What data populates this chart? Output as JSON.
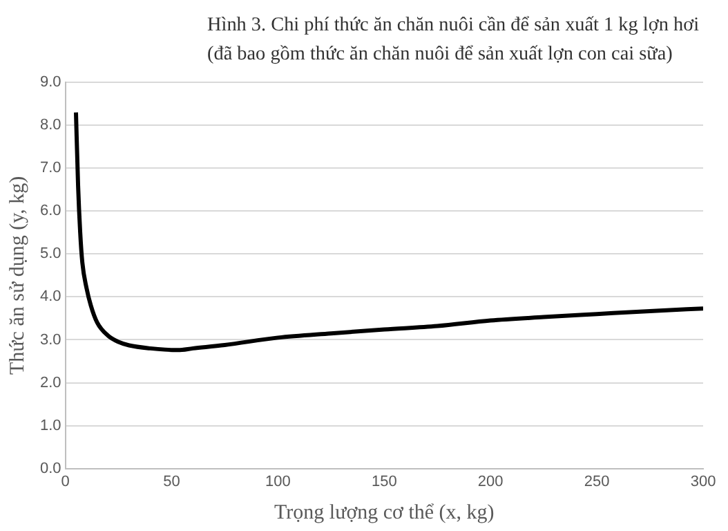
{
  "chart_data": {
    "type": "line",
    "title": "Hình 3. Chi phí thức ăn chăn nuôi cần để sản xuất 1 kg lợn hơi (đã bao gồm thức ăn chăn nuôi để sản xuất lợn con cai sữa)",
    "xlabel": "Trọng lượng cơ thể (x, kg)",
    "ylabel": "Thức ăn sử dụng (y, kg)",
    "x": [
      5,
      6,
      7,
      8,
      10,
      12,
      15,
      20,
      25,
      30,
      40,
      53,
      60,
      75,
      100,
      125,
      150,
      175,
      200,
      225,
      250,
      275,
      300
    ],
    "series": [
      {
        "color": "#000000",
        "values": [
          8.3,
          6.6,
          5.5,
          4.8,
          4.2,
          3.8,
          3.4,
          3.1,
          2.95,
          2.87,
          2.8,
          2.76,
          2.8,
          2.88,
          3.05,
          3.15,
          3.24,
          3.32,
          3.45,
          3.53,
          3.6,
          3.67,
          3.73
        ]
      }
    ],
    "xlim": [
      0,
      300
    ],
    "xticks": [
      0,
      50,
      100,
      150,
      200,
      250,
      300
    ],
    "ylim": [
      0,
      9
    ],
    "yticks": [
      {
        "value": 0,
        "label": "0.0"
      },
      {
        "value": 1,
        "label": "1.0"
      },
      {
        "value": 2,
        "label": "2.0"
      },
      {
        "value": 3,
        "label": "3.0"
      },
      {
        "value": 4,
        "label": "4.0"
      },
      {
        "value": 5,
        "label": "5.0"
      },
      {
        "value": 6,
        "label": "6.0"
      },
      {
        "value": 7,
        "label": "7.0"
      },
      {
        "value": 8,
        "label": "8.0"
      },
      {
        "value": 9,
        "label": "9.0"
      }
    ],
    "grid": "y",
    "legend": false,
    "marker": "none",
    "line_style": "solid"
  }
}
